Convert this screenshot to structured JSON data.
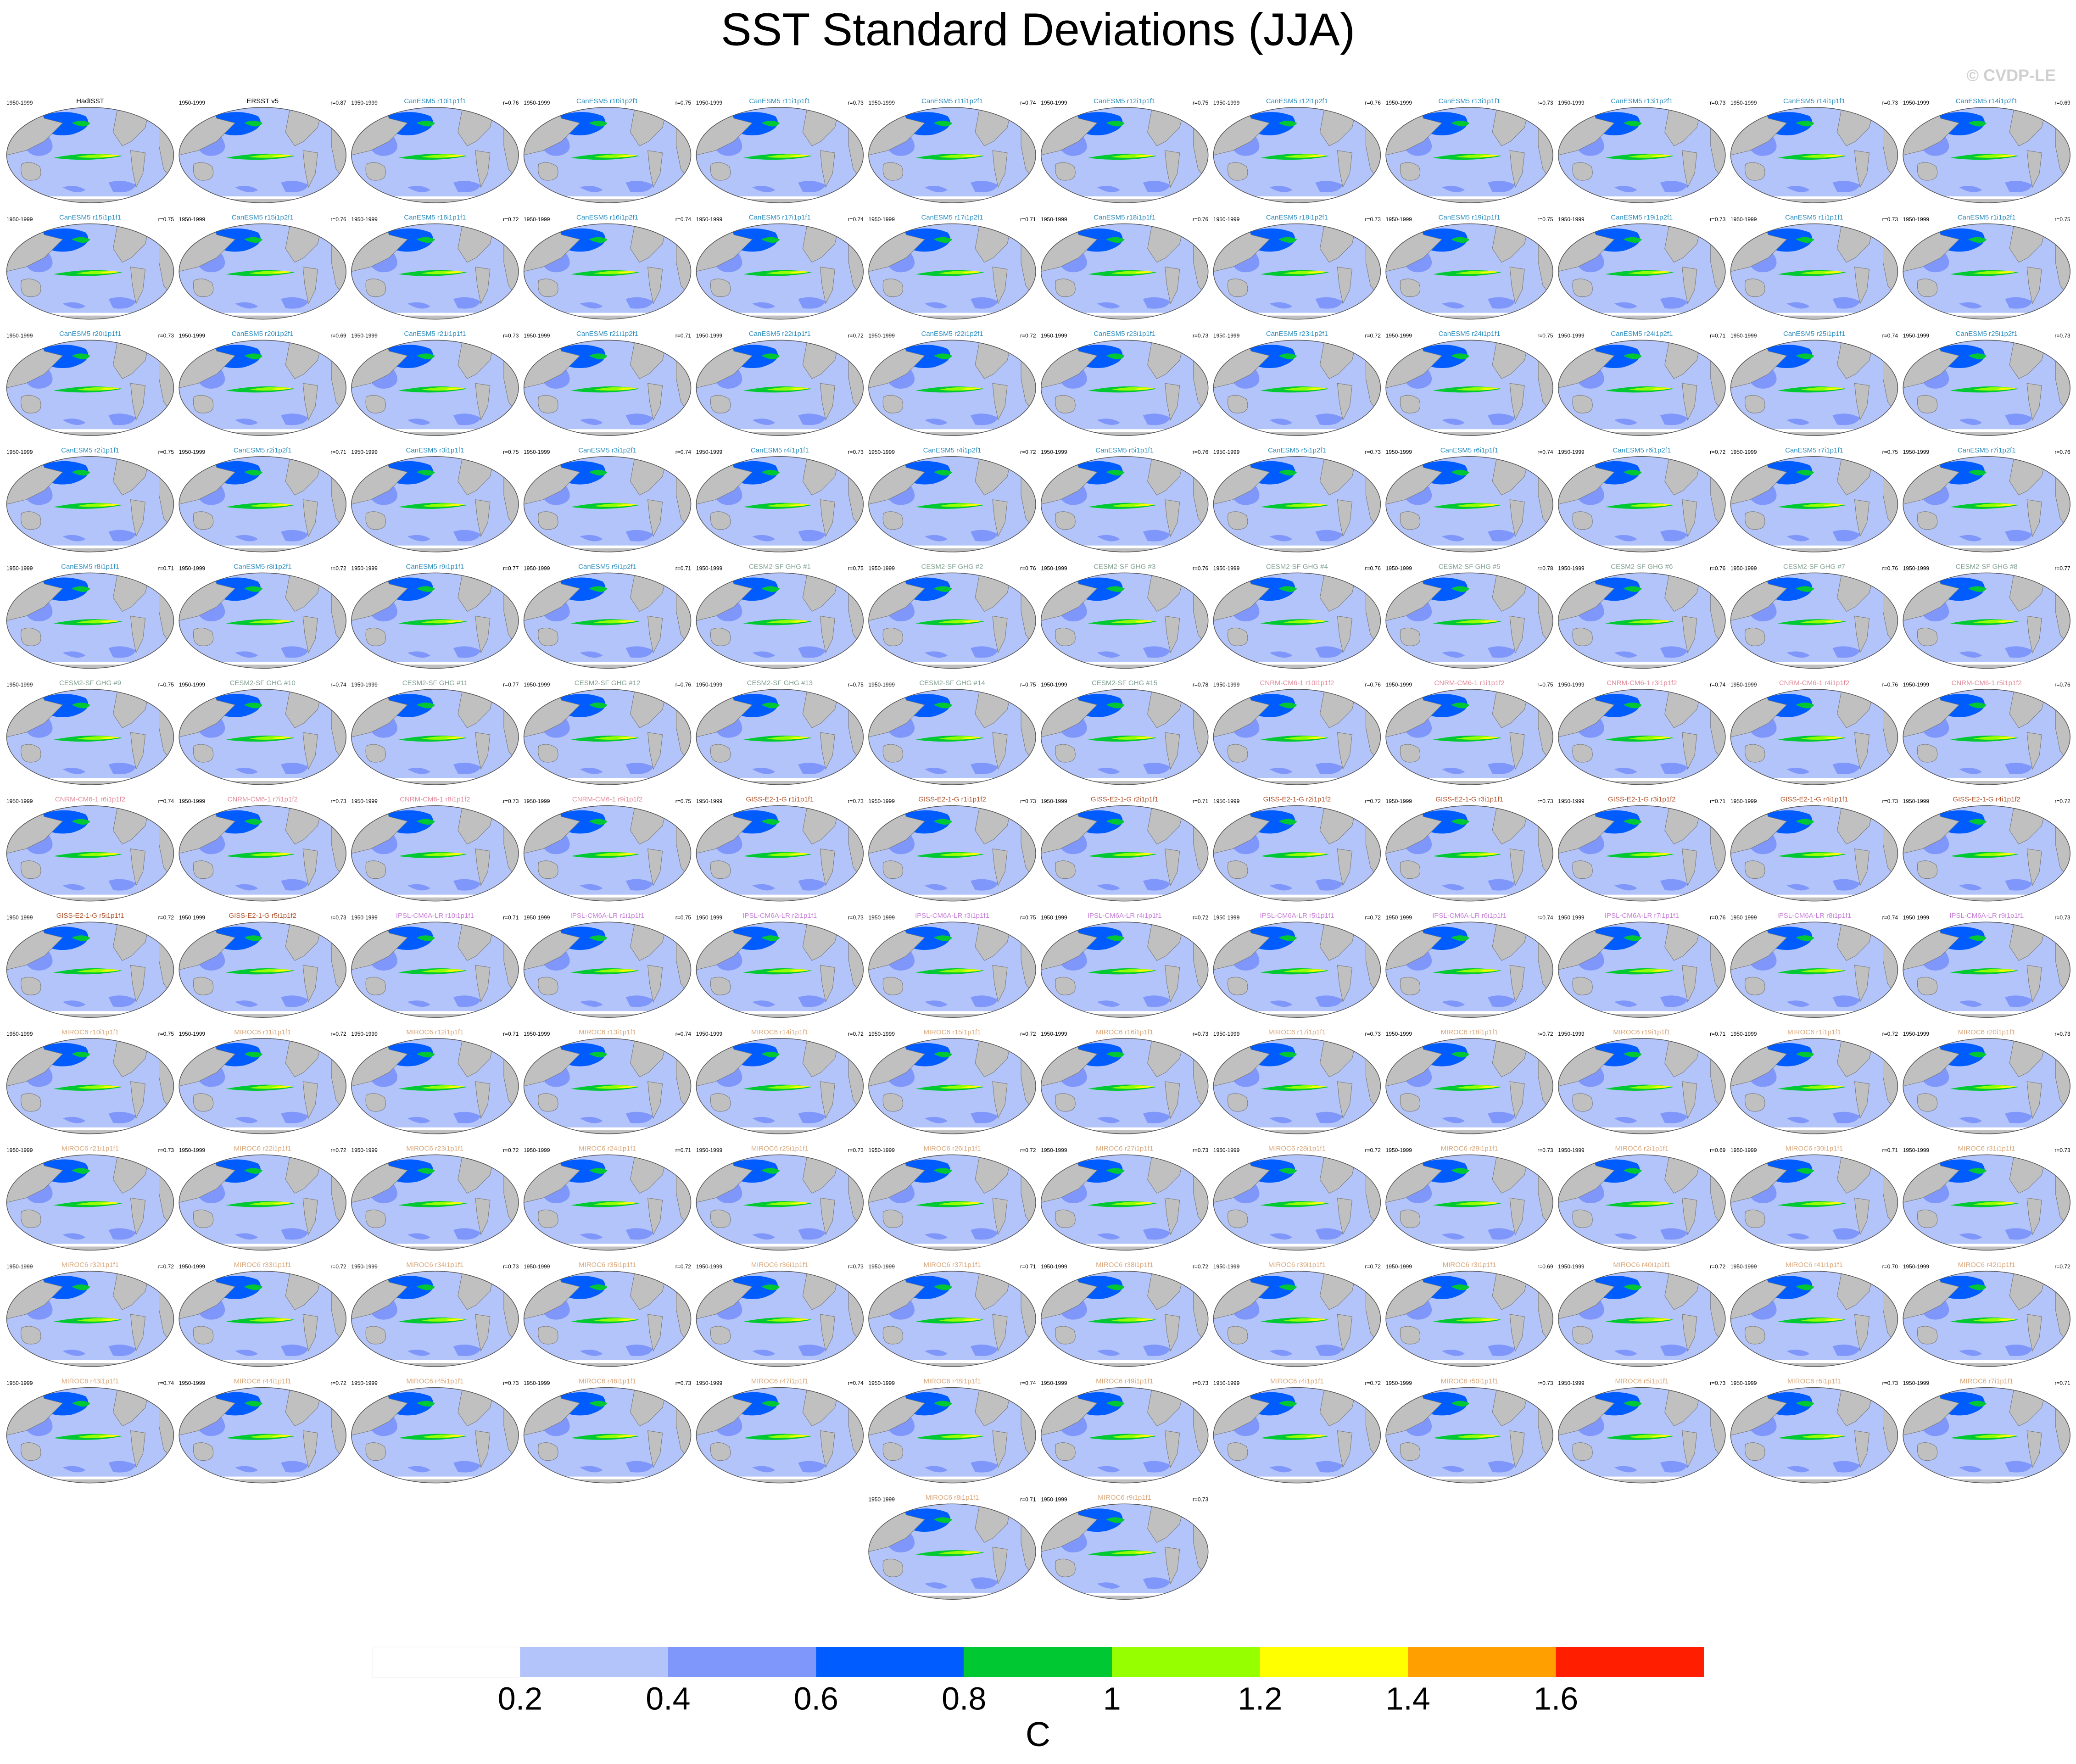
{
  "title": "SST Standard Deviations (JJA)",
  "credit": "© CVDP-LE",
  "panels": [
    {
      "period": "1950-1999",
      "title": "HadISST",
      "r": "",
      "color": "#000000"
    },
    {
      "period": "1950-1999",
      "title": "ERSST v5",
      "r": "r=0.87",
      "color": "#000000"
    },
    {
      "period": "1950-1999",
      "title": "CanESM5 r10i1p1f1",
      "r": "r=0.76",
      "color": "#2b8cbe"
    },
    {
      "period": "1950-1999",
      "title": "CanESM5 r10i1p2f1",
      "r": "r=0.75",
      "color": "#2b8cbe"
    },
    {
      "period": "1950-1999",
      "title": "CanESM5 r11i1p1f1",
      "r": "r=0.73",
      "color": "#2b8cbe"
    },
    {
      "period": "1950-1999",
      "title": "CanESM5 r11i1p2f1",
      "r": "r=0.74",
      "color": "#2b8cbe"
    },
    {
      "period": "1950-1999",
      "title": "CanESM5 r12i1p1f1",
      "r": "r=0.75",
      "color": "#2b8cbe"
    },
    {
      "period": "1950-1999",
      "title": "CanESM5 r12i1p2f1",
      "r": "r=0.76",
      "color": "#2b8cbe"
    },
    {
      "period": "1950-1999",
      "title": "CanESM5 r13i1p1f1",
      "r": "r=0.73",
      "color": "#2b8cbe"
    },
    {
      "period": "1950-1999",
      "title": "CanESM5 r13i1p2f1",
      "r": "r=0.73",
      "color": "#2b8cbe"
    },
    {
      "period": "1950-1999",
      "title": "CanESM5 r14i1p1f1",
      "r": "r=0.73",
      "color": "#2b8cbe"
    },
    {
      "period": "1950-1999",
      "title": "CanESM5 r14i1p2f1",
      "r": "r=0.69",
      "color": "#2b8cbe"
    },
    {
      "period": "1950-1999",
      "title": "CanESM5 r15i1p1f1",
      "r": "r=0.75",
      "color": "#2b8cbe"
    },
    {
      "period": "1950-1999",
      "title": "CanESM5 r15i1p2f1",
      "r": "r=0.76",
      "color": "#2b8cbe"
    },
    {
      "period": "1950-1999",
      "title": "CanESM5 r16i1p1f1",
      "r": "r=0.72",
      "color": "#2b8cbe"
    },
    {
      "period": "1950-1999",
      "title": "CanESM5 r16i1p2f1",
      "r": "r=0.74",
      "color": "#2b8cbe"
    },
    {
      "period": "1950-1999",
      "title": "CanESM5 r17i1p1f1",
      "r": "r=0.74",
      "color": "#2b8cbe"
    },
    {
      "period": "1950-1999",
      "title": "CanESM5 r17i1p2f1",
      "r": "r=0.71",
      "color": "#2b8cbe"
    },
    {
      "period": "1950-1999",
      "title": "CanESM5 r18i1p1f1",
      "r": "r=0.76",
      "color": "#2b8cbe"
    },
    {
      "period": "1950-1999",
      "title": "CanESM5 r18i1p2f1",
      "r": "r=0.73",
      "color": "#2b8cbe"
    },
    {
      "period": "1950-1999",
      "title": "CanESM5 r19i1p1f1",
      "r": "r=0.75",
      "color": "#2b8cbe"
    },
    {
      "period": "1950-1999",
      "title": "CanESM5 r19i1p2f1",
      "r": "r=0.73",
      "color": "#2b8cbe"
    },
    {
      "period": "1950-1999",
      "title": "CanESM5 r1i1p1f1",
      "r": "r=0.73",
      "color": "#2b8cbe"
    },
    {
      "period": "1950-1999",
      "title": "CanESM5 r1i1p2f1",
      "r": "r=0.75",
      "color": "#2b8cbe"
    },
    {
      "period": "1950-1999",
      "title": "CanESM5 r20i1p1f1",
      "r": "r=0.73",
      "color": "#2b8cbe"
    },
    {
      "period": "1950-1999",
      "title": "CanESM5 r20i1p2f1",
      "r": "r=0.69",
      "color": "#2b8cbe"
    },
    {
      "period": "1950-1999",
      "title": "CanESM5 r21i1p1f1",
      "r": "r=0.73",
      "color": "#2b8cbe"
    },
    {
      "period": "1950-1999",
      "title": "CanESM5 r21i1p2f1",
      "r": "r=0.71",
      "color": "#2b8cbe"
    },
    {
      "period": "1950-1999",
      "title": "CanESM5 r22i1p1f1",
      "r": "r=0.72",
      "color": "#2b8cbe"
    },
    {
      "period": "1950-1999",
      "title": "CanESM5 r22i1p2f1",
      "r": "r=0.72",
      "color": "#2b8cbe"
    },
    {
      "period": "1950-1999",
      "title": "CanESM5 r23i1p1f1",
      "r": "r=0.73",
      "color": "#2b8cbe"
    },
    {
      "period": "1950-1999",
      "title": "CanESM5 r23i1p2f1",
      "r": "r=0.72",
      "color": "#2b8cbe"
    },
    {
      "period": "1950-1999",
      "title": "CanESM5 r24i1p1f1",
      "r": "r=0.75",
      "color": "#2b8cbe"
    },
    {
      "period": "1950-1999",
      "title": "CanESM5 r24i1p2f1",
      "r": "r=0.71",
      "color": "#2b8cbe"
    },
    {
      "period": "1950-1999",
      "title": "CanESM5 r25i1p1f1",
      "r": "r=0.74",
      "color": "#2b8cbe"
    },
    {
      "period": "1950-1999",
      "title": "CanESM5 r25i1p2f1",
      "r": "r=0.73",
      "color": "#2b8cbe"
    },
    {
      "period": "1950-1999",
      "title": "CanESM5 r2i1p1f1",
      "r": "r=0.75",
      "color": "#2b8cbe"
    },
    {
      "period": "1950-1999",
      "title": "CanESM5 r2i1p2f1",
      "r": "r=0.71",
      "color": "#2b8cbe"
    },
    {
      "period": "1950-1999",
      "title": "CanESM5 r3i1p1f1",
      "r": "r=0.75",
      "color": "#2b8cbe"
    },
    {
      "period": "1950-1999",
      "title": "CanESM5 r3i1p2f1",
      "r": "r=0.74",
      "color": "#2b8cbe"
    },
    {
      "period": "1950-1999",
      "title": "CanESM5 r4i1p1f1",
      "r": "r=0.73",
      "color": "#2b8cbe"
    },
    {
      "period": "1950-1999",
      "title": "CanESM5 r4i1p2f1",
      "r": "r=0.72",
      "color": "#2b8cbe"
    },
    {
      "period": "1950-1999",
      "title": "CanESM5 r5i1p1f1",
      "r": "r=0.76",
      "color": "#2b8cbe"
    },
    {
      "period": "1950-1999",
      "title": "CanESM5 r5i1p2f1",
      "r": "r=0.73",
      "color": "#2b8cbe"
    },
    {
      "period": "1950-1999",
      "title": "CanESM5 r6i1p1f1",
      "r": "r=0.74",
      "color": "#2b8cbe"
    },
    {
      "period": "1950-1999",
      "title": "CanESM5 r6i1p2f1",
      "r": "r=0.72",
      "color": "#2b8cbe"
    },
    {
      "period": "1950-1999",
      "title": "CanESM5 r7i1p1f1",
      "r": "r=0.75",
      "color": "#2b8cbe"
    },
    {
      "period": "1950-1999",
      "title": "CanESM5 r7i1p2f1",
      "r": "r=0.76",
      "color": "#2b8cbe"
    },
    {
      "period": "1950-1999",
      "title": "CanESM5 r8i1p1f1",
      "r": "r=0.71",
      "color": "#2b8cbe"
    },
    {
      "period": "1950-1999",
      "title": "CanESM5 r8i1p2f1",
      "r": "r=0.72",
      "color": "#2b8cbe"
    },
    {
      "period": "1950-1999",
      "title": "CanESM5 r9i1p1f1",
      "r": "r=0.77",
      "color": "#2b8cbe"
    },
    {
      "period": "1950-1999",
      "title": "CanESM5 r9i1p2f1",
      "r": "r=0.71",
      "color": "#2b8cbe"
    },
    {
      "period": "1950-1999",
      "title": "CESM2-SF GHG #1",
      "r": "r=0.75",
      "color": "#7f9f8f"
    },
    {
      "period": "1950-1999",
      "title": "CESM2-SF GHG #2",
      "r": "r=0.76",
      "color": "#7f9f8f"
    },
    {
      "period": "1950-1999",
      "title": "CESM2-SF GHG #3",
      "r": "r=0.76",
      "color": "#7f9f8f"
    },
    {
      "period": "1950-1999",
      "title": "CESM2-SF GHG #4",
      "r": "r=0.76",
      "color": "#7f9f8f"
    },
    {
      "period": "1950-1999",
      "title": "CESM2-SF GHG #5",
      "r": "r=0.78",
      "color": "#7f9f8f"
    },
    {
      "period": "1950-1999",
      "title": "CESM2-SF GHG #6",
      "r": "r=0.76",
      "color": "#7f9f8f"
    },
    {
      "period": "1950-1999",
      "title": "CESM2-SF GHG #7",
      "r": "r=0.76",
      "color": "#7f9f8f"
    },
    {
      "period": "1950-1999",
      "title": "CESM2-SF GHG #8",
      "r": "r=0.77",
      "color": "#7f9f8f"
    },
    {
      "period": "1950-1999",
      "title": "CESM2-SF GHG #9",
      "r": "r=0.75",
      "color": "#7f9f8f"
    },
    {
      "period": "1950-1999",
      "title": "CESM2-SF GHG #10",
      "r": "r=0.74",
      "color": "#7f9f8f"
    },
    {
      "period": "1950-1999",
      "title": "CESM2-SF GHG #11",
      "r": "r=0.77",
      "color": "#7f9f8f"
    },
    {
      "period": "1950-1999",
      "title": "CESM2-SF GHG #12",
      "r": "r=0.76",
      "color": "#7f9f8f"
    },
    {
      "period": "1950-1999",
      "title": "CESM2-SF GHG #13",
      "r": "r=0.75",
      "color": "#7f9f8f"
    },
    {
      "period": "1950-1999",
      "title": "CESM2-SF GHG #14",
      "r": "r=0.75",
      "color": "#7f9f8f"
    },
    {
      "period": "1950-1999",
      "title": "CESM2-SF GHG #15",
      "r": "r=0.78",
      "color": "#7f9f8f"
    },
    {
      "period": "1950-1999",
      "title": "CNRM-CM6-1 r10i1p1f2",
      "r": "r=0.76",
      "color": "#e08a9a"
    },
    {
      "period": "1950-1999",
      "title": "CNRM-CM6-1 r1i1p1f2",
      "r": "r=0.75",
      "color": "#e08a9a"
    },
    {
      "period": "1950-1999",
      "title": "CNRM-CM6-1 r3i1p1f2",
      "r": "r=0.74",
      "color": "#e08a9a"
    },
    {
      "period": "1950-1999",
      "title": "CNRM-CM6-1 r4i1p1f2",
      "r": "r=0.76",
      "color": "#e08a9a"
    },
    {
      "period": "1950-1999",
      "title": "CNRM-CM6-1 r5i1p1f2",
      "r": "r=0.76",
      "color": "#e08a9a"
    },
    {
      "period": "1950-1999",
      "title": "CNRM-CM6-1 r6i1p1f2",
      "r": "r=0.74",
      "color": "#e08a9a"
    },
    {
      "period": "1950-1999",
      "title": "CNRM-CM6-1 r7i1p1f2",
      "r": "r=0.73",
      "color": "#e08a9a"
    },
    {
      "period": "1950-1999",
      "title": "CNRM-CM6-1 r8i1p1f2",
      "r": "r=0.73",
      "color": "#e08a9a"
    },
    {
      "period": "1950-1999",
      "title": "CNRM-CM6-1 r9i1p1f2",
      "r": "r=0.75",
      "color": "#e08a9a"
    },
    {
      "period": "1950-1999",
      "title": "GISS-E2-1-G r1i1p1f1",
      "r": "r=0.73",
      "color": "#b0502a"
    },
    {
      "period": "1950-1999",
      "title": "GISS-E2-1-G r1i1p1f2",
      "r": "r=0.73",
      "color": "#b0502a"
    },
    {
      "period": "1950-1999",
      "title": "GISS-E2-1-G r2i1p1f1",
      "r": "r=0.71",
      "color": "#b0502a"
    },
    {
      "period": "1950-1999",
      "title": "GISS-E2-1-G r2i1p1f2",
      "r": "r=0.72",
      "color": "#b0502a"
    },
    {
      "period": "1950-1999",
      "title": "GISS-E2-1-G r3i1p1f1",
      "r": "r=0.73",
      "color": "#b0502a"
    },
    {
      "period": "1950-1999",
      "title": "GISS-E2-1-G r3i1p1f2",
      "r": "r=0.71",
      "color": "#b0502a"
    },
    {
      "period": "1950-1999",
      "title": "GISS-E2-1-G r4i1p1f1",
      "r": "r=0.73",
      "color": "#b0502a"
    },
    {
      "period": "1950-1999",
      "title": "GISS-E2-1-G r4i1p1f2",
      "r": "r=0.72",
      "color": "#b0502a"
    },
    {
      "period": "1950-1999",
      "title": "GISS-E2-1-G r5i1p1f1",
      "r": "r=0.72",
      "color": "#b0502a"
    },
    {
      "period": "1950-1999",
      "title": "GISS-E2-1-G r5i1p1f2",
      "r": "r=0.73",
      "color": "#b0502a"
    },
    {
      "period": "1950-1999",
      "title": "IPSL-CM6A-LR r10i1p1f1",
      "r": "r=0.71",
      "color": "#c77dd8"
    },
    {
      "period": "1950-1999",
      "title": "IPSL-CM6A-LR r1i1p1f1",
      "r": "r=0.75",
      "color": "#c77dd8"
    },
    {
      "period": "1950-1999",
      "title": "IPSL-CM6A-LR r2i1p1f1",
      "r": "r=0.73",
      "color": "#c77dd8"
    },
    {
      "period": "1950-1999",
      "title": "IPSL-CM6A-LR r3i1p1f1",
      "r": "r=0.75",
      "color": "#c77dd8"
    },
    {
      "period": "1950-1999",
      "title": "IPSL-CM6A-LR r4i1p1f1",
      "r": "r=0.72",
      "color": "#c77dd8"
    },
    {
      "period": "1950-1999",
      "title": "IPSL-CM6A-LR r5i1p1f1",
      "r": "r=0.72",
      "color": "#c77dd8"
    },
    {
      "period": "1950-1999",
      "title": "IPSL-CM6A-LR r6i1p1f1",
      "r": "r=0.74",
      "color": "#c77dd8"
    },
    {
      "period": "1950-1999",
      "title": "IPSL-CM6A-LR r7i1p1f1",
      "r": "r=0.76",
      "color": "#c77dd8"
    },
    {
      "period": "1950-1999",
      "title": "IPSL-CM6A-LR r8i1p1f1",
      "r": "r=0.74",
      "color": "#c77dd8"
    },
    {
      "period": "1950-1999",
      "title": "IPSL-CM6A-LR r9i1p1f1",
      "r": "r=0.73",
      "color": "#c77dd8"
    },
    {
      "period": "1950-1999",
      "title": "MIROC6 r10i1p1f1",
      "r": "r=0.75",
      "color": "#d9a679"
    },
    {
      "period": "1950-1999",
      "title": "MIROC6 r11i1p1f1",
      "r": "r=0.72",
      "color": "#d9a679"
    },
    {
      "period": "1950-1999",
      "title": "MIROC6 r12i1p1f1",
      "r": "r=0.71",
      "color": "#d9a679"
    },
    {
      "period": "1950-1999",
      "title": "MIROC6 r13i1p1f1",
      "r": "r=0.74",
      "color": "#d9a679"
    },
    {
      "period": "1950-1999",
      "title": "MIROC6 r14i1p1f1",
      "r": "r=0.72",
      "color": "#d9a679"
    },
    {
      "period": "1950-1999",
      "title": "MIROC6 r15i1p1f1",
      "r": "r=0.72",
      "color": "#d9a679"
    },
    {
      "period": "1950-1999",
      "title": "MIROC6 r16i1p1f1",
      "r": "r=0.73",
      "color": "#d9a679"
    },
    {
      "period": "1950-1999",
      "title": "MIROC6 r17i1p1f1",
      "r": "r=0.73",
      "color": "#d9a679"
    },
    {
      "period": "1950-1999",
      "title": "MIROC6 r18i1p1f1",
      "r": "r=0.72",
      "color": "#d9a679"
    },
    {
      "period": "1950-1999",
      "title": "MIROC6 r19i1p1f1",
      "r": "r=0.71",
      "color": "#d9a679"
    },
    {
      "period": "1950-1999",
      "title": "MIROC6 r1i1p1f1",
      "r": "r=0.72",
      "color": "#d9a679"
    },
    {
      "period": "1950-1999",
      "title": "MIROC6 r20i1p1f1",
      "r": "r=0.73",
      "color": "#d9a679"
    },
    {
      "period": "1950-1999",
      "title": "MIROC6 r21i1p1f1",
      "r": "r=0.73",
      "color": "#d9a679"
    },
    {
      "period": "1950-1999",
      "title": "MIROC6 r22i1p1f1",
      "r": "r=0.72",
      "color": "#d9a679"
    },
    {
      "period": "1950-1999",
      "title": "MIROC6 r23i1p1f1",
      "r": "r=0.72",
      "color": "#d9a679"
    },
    {
      "period": "1950-1999",
      "title": "MIROC6 r24i1p1f1",
      "r": "r=0.71",
      "color": "#d9a679"
    },
    {
      "period": "1950-1999",
      "title": "MIROC6 r25i1p1f1",
      "r": "r=0.73",
      "color": "#d9a679"
    },
    {
      "period": "1950-1999",
      "title": "MIROC6 r26i1p1f1",
      "r": "r=0.72",
      "color": "#d9a679"
    },
    {
      "period": "1950-1999",
      "title": "MIROC6 r27i1p1f1",
      "r": "r=0.73",
      "color": "#d9a679"
    },
    {
      "period": "1950-1999",
      "title": "MIROC6 r28i1p1f1",
      "r": "r=0.72",
      "color": "#d9a679"
    },
    {
      "period": "1950-1999",
      "title": "MIROC6 r29i1p1f1",
      "r": "r=0.73",
      "color": "#d9a679"
    },
    {
      "period": "1950-1999",
      "title": "MIROC6 r2i1p1f1",
      "r": "r=0.69",
      "color": "#d9a679"
    },
    {
      "period": "1950-1999",
      "title": "MIROC6 r30i1p1f1",
      "r": "r=0.71",
      "color": "#d9a679"
    },
    {
      "period": "1950-1999",
      "title": "MIROC6 r31i1p1f1",
      "r": "r=0.73",
      "color": "#d9a679"
    },
    {
      "period": "1950-1999",
      "title": "MIROC6 r32i1p1f1",
      "r": "r=0.72",
      "color": "#d9a679"
    },
    {
      "period": "1950-1999",
      "title": "MIROC6 r33i1p1f1",
      "r": "r=0.72",
      "color": "#d9a679"
    },
    {
      "period": "1950-1999",
      "title": "MIROC6 r34i1p1f1",
      "r": "r=0.73",
      "color": "#d9a679"
    },
    {
      "period": "1950-1999",
      "title": "MIROC6 r35i1p1f1",
      "r": "r=0.72",
      "color": "#d9a679"
    },
    {
      "period": "1950-1999",
      "title": "MIROC6 r36i1p1f1",
      "r": "r=0.73",
      "color": "#d9a679"
    },
    {
      "period": "1950-1999",
      "title": "MIROC6 r37i1p1f1",
      "r": "r=0.71",
      "color": "#d9a679"
    },
    {
      "period": "1950-1999",
      "title": "MIROC6 r38i1p1f1",
      "r": "r=0.72",
      "color": "#d9a679"
    },
    {
      "period": "1950-1999",
      "title": "MIROC6 r39i1p1f1",
      "r": "r=0.72",
      "color": "#d9a679"
    },
    {
      "period": "1950-1999",
      "title": "MIROC6 r3i1p1f1",
      "r": "r=0.69",
      "color": "#d9a679"
    },
    {
      "period": "1950-1999",
      "title": "MIROC6 r40i1p1f1",
      "r": "r=0.72",
      "color": "#d9a679"
    },
    {
      "period": "1950-1999",
      "title": "MIROC6 r41i1p1f1",
      "r": "r=0.70",
      "color": "#d9a679"
    },
    {
      "period": "1950-1999",
      "title": "MIROC6 r42i1p1f1",
      "r": "r=0.72",
      "color": "#d9a679"
    },
    {
      "period": "1950-1999",
      "title": "MIROC6 r43i1p1f1",
      "r": "r=0.74",
      "color": "#d9a679"
    },
    {
      "period": "1950-1999",
      "title": "MIROC6 r44i1p1f1",
      "r": "r=0.72",
      "color": "#d9a679"
    },
    {
      "period": "1950-1999",
      "title": "MIROC6 r45i1p1f1",
      "r": "r=0.73",
      "color": "#d9a679"
    },
    {
      "period": "1950-1999",
      "title": "MIROC6 r46i1p1f1",
      "r": "r=0.73",
      "color": "#d9a679"
    },
    {
      "period": "1950-1999",
      "title": "MIROC6 r47i1p1f1",
      "r": "r=0.74",
      "color": "#d9a679"
    },
    {
      "period": "1950-1999",
      "title": "MIROC6 r48i1p1f1",
      "r": "r=0.74",
      "color": "#d9a679"
    },
    {
      "period": "1950-1999",
      "title": "MIROC6 r49i1p1f1",
      "r": "r=0.73",
      "color": "#d9a679"
    },
    {
      "period": "1950-1999",
      "title": "MIROC6 r4i1p1f1",
      "r": "r=0.72",
      "color": "#d9a679"
    },
    {
      "period": "1950-1999",
      "title": "MIROC6 r50i1p1f1",
      "r": "r=0.73",
      "color": "#d9a679"
    },
    {
      "period": "1950-1999",
      "title": "MIROC6 r5i1p1f1",
      "r": "r=0.73",
      "color": "#d9a679"
    },
    {
      "period": "1950-1999",
      "title": "MIROC6 r6i1p1f1",
      "r": "r=0.73",
      "color": "#d9a679"
    },
    {
      "period": "1950-1999",
      "title": "MIROC6 r7i1p1f1",
      "r": "r=0.71",
      "color": "#d9a679"
    },
    {
      "period": "1950-1999",
      "title": "MIROC6 r8i1p1f1",
      "r": "r=0.71",
      "color": "#d9a679"
    },
    {
      "period": "1950-1999",
      "title": "MIROC6 r9i1p1f1",
      "r": "r=0.73",
      "color": "#d9a679"
    }
  ],
  "colorbar": {
    "colors": [
      "#ffffff",
      "#b3c4fa",
      "#7f96fa",
      "#005cff",
      "#00c832",
      "#96ff00",
      "#ffff00",
      "#ffa000",
      "#ff1e00"
    ],
    "ticks": [
      0.2,
      0.4,
      0.6,
      0.8,
      1,
      1.2,
      1.4,
      1.6
    ],
    "label": "C"
  }
}
